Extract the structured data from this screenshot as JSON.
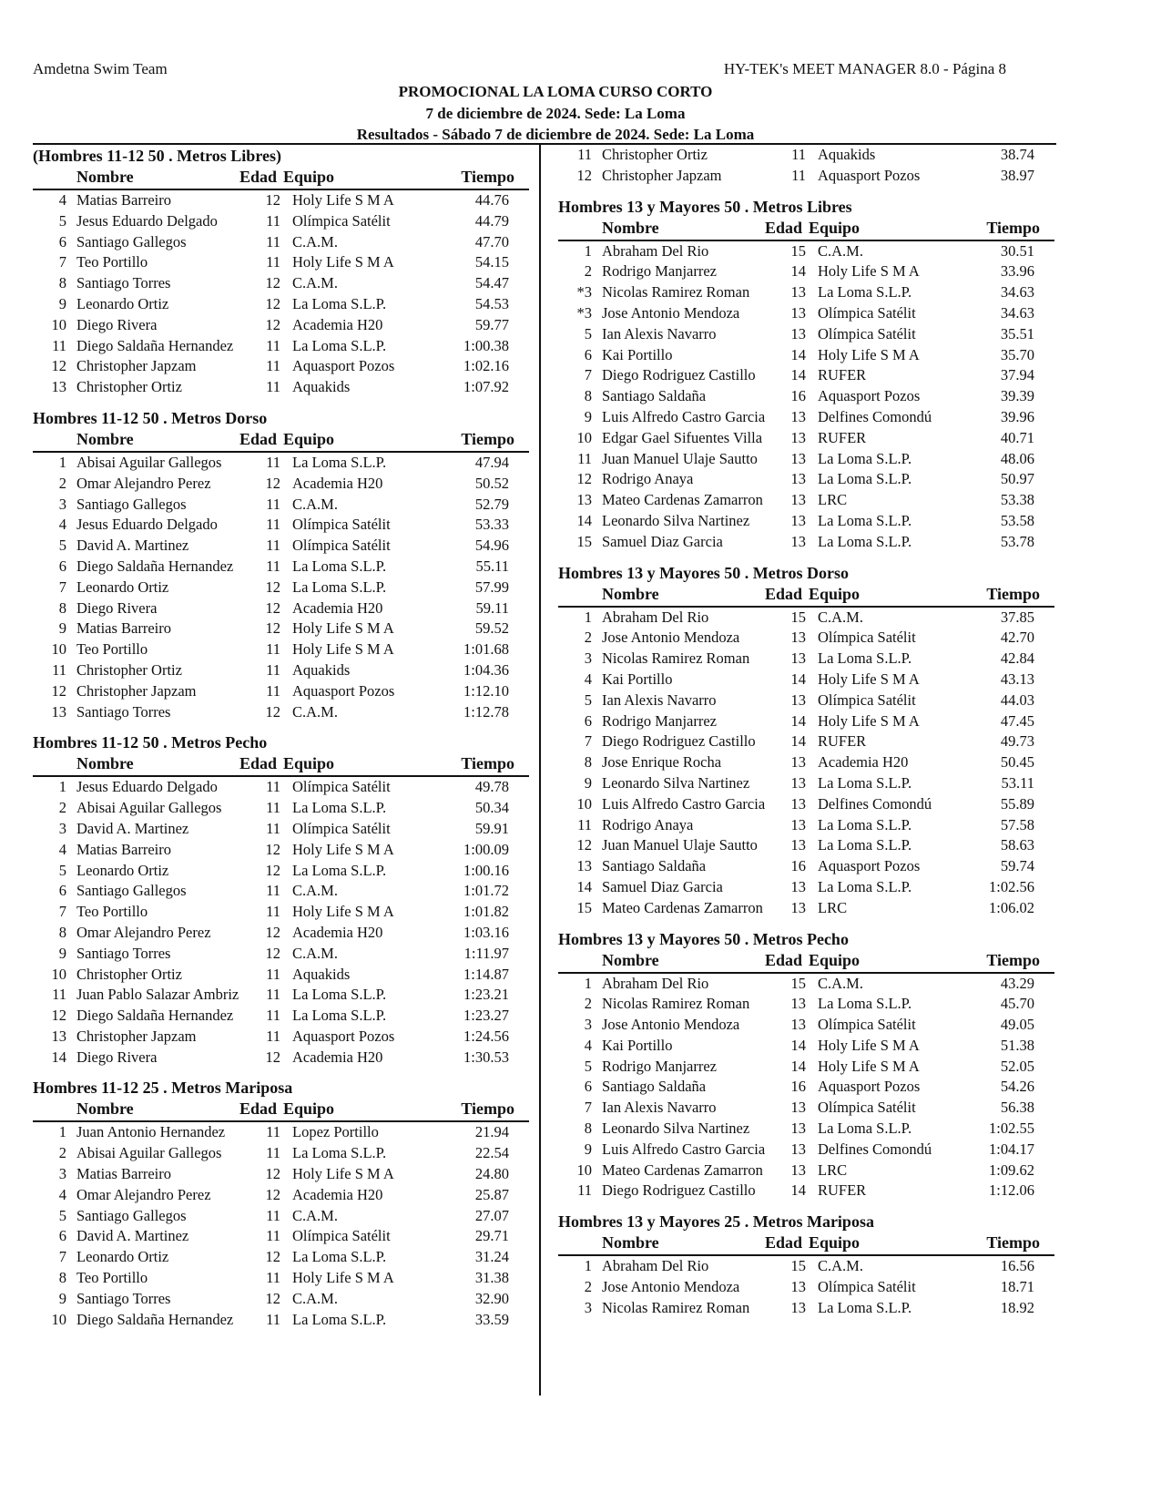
{
  "header": {
    "team": "Amdetna Swim Team",
    "software": "HY-TEK's MEET MANAGER 8.0 - Página 8",
    "meet_title": "PROMOCIONAL LA LOMA CURSO CORTO",
    "date_venue": "7 de diciembre de 2024. Sede: La Loma",
    "results_line": "Resultados - Sábado 7 de diciembre de 2024. Sede: La Loma"
  },
  "columns_header": {
    "name": "Nombre",
    "age": "Edad",
    "team": "Equipo",
    "time": "Tiempo"
  },
  "left_column": [
    {
      "title": "(Hombres 11-12 50 . Metros Libres)",
      "rows": [
        [
          "4",
          "Matias Barreiro",
          "12",
          "Holy Life S M A",
          "44.76"
        ],
        [
          "5",
          "Jesus Eduardo Delgado",
          "11",
          "Olímpica Satélit",
          "44.79"
        ],
        [
          "6",
          "Santiago Gallegos",
          "11",
          "C.A.M.",
          "47.70"
        ],
        [
          "7",
          "Teo Portillo",
          "11",
          "Holy Life S M A",
          "54.15"
        ],
        [
          "8",
          "Santiago Torres",
          "12",
          "C.A.M.",
          "54.47"
        ],
        [
          "9",
          "Leonardo Ortiz",
          "12",
          "La Loma S.L.P.",
          "54.53"
        ],
        [
          "10",
          "Diego Rivera",
          "12",
          "Academia H20",
          "59.77"
        ],
        [
          "11",
          "Diego Saldaña Hernandez",
          "11",
          "La Loma S.L.P.",
          "1:00.38"
        ],
        [
          "12",
          "Christopher Japzam",
          "11",
          "Aquasport Pozos",
          "1:02.16"
        ],
        [
          "13",
          "Christopher Ortiz",
          "11",
          "Aquakids",
          "1:07.92"
        ]
      ]
    },
    {
      "title": "Hombres 11-12 50 . Metros Dorso",
      "rows": [
        [
          "1",
          "Abisai Aguilar Gallegos",
          "11",
          "La Loma S.L.P.",
          "47.94"
        ],
        [
          "2",
          "Omar Alejandro Perez",
          "12",
          "Academia H20",
          "50.52"
        ],
        [
          "3",
          "Santiago Gallegos",
          "11",
          "C.A.M.",
          "52.79"
        ],
        [
          "4",
          "Jesus Eduardo Delgado",
          "11",
          "Olímpica Satélit",
          "53.33"
        ],
        [
          "5",
          "David A. Martinez",
          "11",
          "Olímpica Satélit",
          "54.96"
        ],
        [
          "6",
          "Diego Saldaña Hernandez",
          "11",
          "La Loma S.L.P.",
          "55.11"
        ],
        [
          "7",
          "Leonardo Ortiz",
          "12",
          "La Loma S.L.P.",
          "57.99"
        ],
        [
          "8",
          "Diego Rivera",
          "12",
          "Academia H20",
          "59.11"
        ],
        [
          "9",
          "Matias Barreiro",
          "12",
          "Holy Life S M A",
          "59.52"
        ],
        [
          "10",
          "Teo Portillo",
          "11",
          "Holy Life S M A",
          "1:01.68"
        ],
        [
          "11",
          "Christopher Ortiz",
          "11",
          "Aquakids",
          "1:04.36"
        ],
        [
          "12",
          "Christopher Japzam",
          "11",
          "Aquasport Pozos",
          "1:12.10"
        ],
        [
          "13",
          "Santiago Torres",
          "12",
          "C.A.M.",
          "1:12.78"
        ]
      ]
    },
    {
      "title": "Hombres 11-12 50 . Metros Pecho",
      "rows": [
        [
          "1",
          "Jesus Eduardo Delgado",
          "11",
          "Olímpica Satélit",
          "49.78"
        ],
        [
          "2",
          "Abisai Aguilar Gallegos",
          "11",
          "La Loma S.L.P.",
          "50.34"
        ],
        [
          "3",
          "David A. Martinez",
          "11",
          "Olímpica Satélit",
          "59.91"
        ],
        [
          "4",
          "Matias Barreiro",
          "12",
          "Holy Life S M A",
          "1:00.09"
        ],
        [
          "5",
          "Leonardo Ortiz",
          "12",
          "La Loma S.L.P.",
          "1:00.16"
        ],
        [
          "6",
          "Santiago Gallegos",
          "11",
          "C.A.M.",
          "1:01.72"
        ],
        [
          "7",
          "Teo Portillo",
          "11",
          "Holy Life S M A",
          "1:01.82"
        ],
        [
          "8",
          "Omar Alejandro Perez",
          "12",
          "Academia H20",
          "1:03.16"
        ],
        [
          "9",
          "Santiago Torres",
          "12",
          "C.A.M.",
          "1:11.97"
        ],
        [
          "10",
          "Christopher Ortiz",
          "11",
          "Aquakids",
          "1:14.87"
        ],
        [
          "11",
          "Juan Pablo Salazar Ambriz",
          "11",
          "La Loma S.L.P.",
          "1:23.21"
        ],
        [
          "12",
          "Diego Saldaña Hernandez",
          "11",
          "La Loma S.L.P.",
          "1:23.27"
        ],
        [
          "13",
          "Christopher Japzam",
          "11",
          "Aquasport Pozos",
          "1:24.56"
        ],
        [
          "14",
          "Diego Rivera",
          "12",
          "Academia H20",
          "1:30.53"
        ]
      ]
    },
    {
      "title": "Hombres 11-12 25 . Metros Mariposa",
      "rows": [
        [
          "1",
          "Juan Antonio Hernandez",
          "11",
          "Lopez Portillo",
          "21.94"
        ],
        [
          "2",
          "Abisai Aguilar Gallegos",
          "11",
          "La Loma S.L.P.",
          "22.54"
        ],
        [
          "3",
          "Matias Barreiro",
          "12",
          "Holy Life S M A",
          "24.80"
        ],
        [
          "4",
          "Omar Alejandro Perez",
          "12",
          "Academia H20",
          "25.87"
        ],
        [
          "5",
          "Santiago Gallegos",
          "11",
          "C.A.M.",
          "27.07"
        ],
        [
          "6",
          "David A. Martinez",
          "11",
          "Olímpica Satélit",
          "29.71"
        ],
        [
          "7",
          "Leonardo Ortiz",
          "12",
          "La Loma S.L.P.",
          "31.24"
        ],
        [
          "8",
          "Teo Portillo",
          "11",
          "Holy Life S M A",
          "31.38"
        ],
        [
          "9",
          "Santiago Torres",
          "12",
          "C.A.M.",
          "32.90"
        ],
        [
          "10",
          "Diego Saldaña Hernandez",
          "11",
          "La Loma S.L.P.",
          "33.59"
        ]
      ]
    }
  ],
  "right_column_continued": [
    [
      "11",
      "Christopher Ortiz",
      "11",
      "Aquakids",
      "38.74"
    ],
    [
      "12",
      "Christopher Japzam",
      "11",
      "Aquasport Pozos",
      "38.97"
    ]
  ],
  "right_column": [
    {
      "title": "Hombres 13 y Mayores 50 . Metros Libres",
      "rows": [
        [
          "1",
          "Abraham Del Rio",
          "15",
          "C.A.M.",
          "30.51"
        ],
        [
          "2",
          "Rodrigo Manjarrez",
          "14",
          "Holy Life S M A",
          "33.96"
        ],
        [
          "*3",
          "Nicolas Ramirez Roman",
          "13",
          "La Loma S.L.P.",
          "34.63"
        ],
        [
          "*3",
          "Jose Antonio Mendoza",
          "13",
          "Olímpica Satélit",
          "34.63"
        ],
        [
          "5",
          "Ian Alexis Navarro",
          "13",
          "Olímpica Satélit",
          "35.51"
        ],
        [
          "6",
          "Kai Portillo",
          "14",
          "Holy Life S M A",
          "35.70"
        ],
        [
          "7",
          "Diego Rodriguez Castillo",
          "14",
          "RUFER",
          "37.94"
        ],
        [
          "8",
          "Santiago Saldaña",
          "16",
          "Aquasport Pozos",
          "39.39"
        ],
        [
          "9",
          "Luis Alfredo Castro Garcia",
          "13",
          "Delfines Comondú",
          "39.96"
        ],
        [
          "10",
          "Edgar Gael Sifuentes Villa",
          "13",
          "RUFER",
          "40.71"
        ],
        [
          "11",
          "Juan Manuel Ulaje Sautto",
          "13",
          "La Loma S.L.P.",
          "48.06"
        ],
        [
          "12",
          "Rodrigo Anaya",
          "13",
          "La Loma S.L.P.",
          "50.97"
        ],
        [
          "13",
          "Mateo Cardenas Zamarron",
          "13",
          "LRC",
          "53.38"
        ],
        [
          "14",
          "Leonardo Silva Nartinez",
          "13",
          "La Loma S.L.P.",
          "53.58"
        ],
        [
          "15",
          "Samuel Diaz Garcia",
          "13",
          "La Loma S.L.P.",
          "53.78"
        ]
      ]
    },
    {
      "title": "Hombres 13 y Mayores 50 . Metros Dorso",
      "rows": [
        [
          "1",
          "Abraham Del Rio",
          "15",
          "C.A.M.",
          "37.85"
        ],
        [
          "2",
          "Jose Antonio Mendoza",
          "13",
          "Olímpica Satélit",
          "42.70"
        ],
        [
          "3",
          "Nicolas Ramirez Roman",
          "13",
          "La Loma S.L.P.",
          "42.84"
        ],
        [
          "4",
          "Kai Portillo",
          "14",
          "Holy Life S M A",
          "43.13"
        ],
        [
          "5",
          "Ian Alexis Navarro",
          "13",
          "Olímpica Satélit",
          "44.03"
        ],
        [
          "6",
          "Rodrigo Manjarrez",
          "14",
          "Holy Life S M A",
          "47.45"
        ],
        [
          "7",
          "Diego Rodriguez Castillo",
          "14",
          "RUFER",
          "49.73"
        ],
        [
          "8",
          "Jose Enrique Rocha",
          "13",
          "Academia H20",
          "50.45"
        ],
        [
          "9",
          "Leonardo Silva Nartinez",
          "13",
          "La Loma S.L.P.",
          "53.11"
        ],
        [
          "10",
          "Luis Alfredo Castro Garcia",
          "13",
          "Delfines Comondú",
          "55.89"
        ],
        [
          "11",
          "Rodrigo Anaya",
          "13",
          "La Loma S.L.P.",
          "57.58"
        ],
        [
          "12",
          "Juan Manuel Ulaje Sautto",
          "13",
          "La Loma S.L.P.",
          "58.63"
        ],
        [
          "13",
          "Santiago Saldaña",
          "16",
          "Aquasport Pozos",
          "59.74"
        ],
        [
          "14",
          "Samuel Diaz Garcia",
          "13",
          "La Loma S.L.P.",
          "1:02.56"
        ],
        [
          "15",
          "Mateo Cardenas Zamarron",
          "13",
          "LRC",
          "1:06.02"
        ]
      ]
    },
    {
      "title": "Hombres 13 y Mayores 50 . Metros Pecho",
      "rows": [
        [
          "1",
          "Abraham Del Rio",
          "15",
          "C.A.M.",
          "43.29"
        ],
        [
          "2",
          "Nicolas Ramirez Roman",
          "13",
          "La Loma S.L.P.",
          "45.70"
        ],
        [
          "3",
          "Jose Antonio Mendoza",
          "13",
          "Olímpica Satélit",
          "49.05"
        ],
        [
          "4",
          "Kai Portillo",
          "14",
          "Holy Life S M A",
          "51.38"
        ],
        [
          "5",
          "Rodrigo Manjarrez",
          "14",
          "Holy Life S M A",
          "52.05"
        ],
        [
          "6",
          "Santiago Saldaña",
          "16",
          "Aquasport Pozos",
          "54.26"
        ],
        [
          "7",
          "Ian Alexis Navarro",
          "13",
          "Olímpica Satélit",
          "56.38"
        ],
        [
          "8",
          "Leonardo Silva Nartinez",
          "13",
          "La Loma S.L.P.",
          "1:02.55"
        ],
        [
          "9",
          "Luis Alfredo Castro Garcia",
          "13",
          "Delfines Comondú",
          "1:04.17"
        ],
        [
          "10",
          "Mateo Cardenas Zamarron",
          "13",
          "LRC",
          "1:09.62"
        ],
        [
          "11",
          "Diego Rodriguez Castillo",
          "14",
          "RUFER",
          "1:12.06"
        ]
      ]
    },
    {
      "title": "Hombres 13 y Mayores 25 . Metros Mariposa",
      "rows": [
        [
          "1",
          "Abraham Del Rio",
          "15",
          "C.A.M.",
          "16.56"
        ],
        [
          "2",
          "Jose Antonio Mendoza",
          "13",
          "Olímpica Satélit",
          "18.71"
        ],
        [
          "3",
          "Nicolas Ramirez Roman",
          "13",
          "La Loma S.L.P.",
          "18.92"
        ]
      ]
    }
  ]
}
